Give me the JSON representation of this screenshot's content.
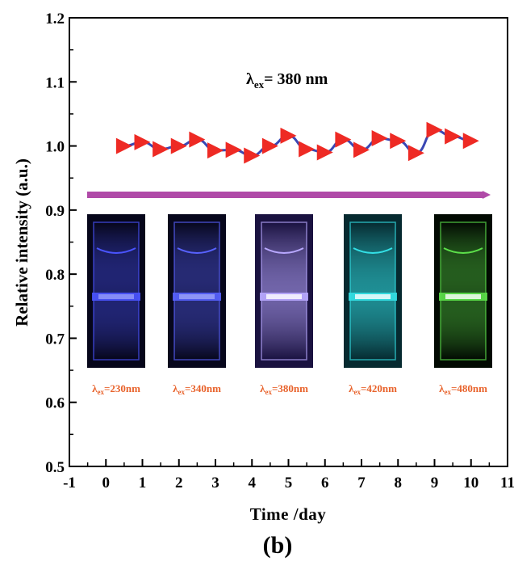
{
  "panel_label": "(b)",
  "annotation": {
    "lambda": "λ",
    "sub": "ex",
    "rest": "= 380 nm"
  },
  "colors": {
    "marker": "#ee2a24",
    "line": "#3a47b4",
    "arrow": "#b04aa8",
    "caption": "#e8622b"
  },
  "photos": [
    {
      "label_sub": "ex",
      "label_rest": "=230nm",
      "glow": "#4a54ff",
      "bg": "#06061a"
    },
    {
      "label_sub": "ex",
      "label_rest": "=340nm",
      "glow": "#5862ff",
      "bg": "#07071c"
    },
    {
      "label_sub": "ex",
      "label_rest": "=380nm",
      "glow": "#b8a8ff",
      "bg": "#1a1240"
    },
    {
      "label_sub": "ex",
      "label_rest": "=420nm",
      "glow": "#33e0e6",
      "bg": "#062a30"
    },
    {
      "label_sub": "ex",
      "label_rest": "=480nm",
      "glow": "#5ce04a",
      "bg": "#020a02"
    }
  ],
  "chart_data": {
    "type": "line",
    "title": "",
    "xlabel": "Time /day",
    "ylabel": "Relative intensity (a.u.)",
    "xlim": [
      -1,
      11
    ],
    "ylim": [
      0.5,
      1.2
    ],
    "xticks": [
      "-1",
      "0",
      "1",
      "2",
      "3",
      "4",
      "5",
      "6",
      "7",
      "8",
      "9",
      "10",
      "11"
    ],
    "yticks": [
      "0.5",
      "0.6",
      "0.7",
      "0.8",
      "0.9",
      "1.0",
      "1.1",
      "1.2"
    ],
    "grid": false,
    "series": [
      {
        "marker": "triangle-right",
        "x": [
          0.5,
          1.0,
          1.5,
          2.0,
          2.5,
          3.0,
          3.5,
          4.0,
          4.5,
          5.0,
          5.5,
          6.0,
          6.5,
          7.0,
          7.5,
          8.0,
          8.5,
          9.0,
          9.5,
          10.0
        ],
        "y": [
          1.0,
          1.006,
          0.995,
          1.0,
          1.01,
          0.993,
          0.994,
          0.985,
          1.0,
          1.016,
          0.995,
          0.99,
          1.01,
          0.994,
          1.012,
          1.008,
          0.989,
          1.025,
          1.015,
          1.008
        ]
      }
    ]
  }
}
